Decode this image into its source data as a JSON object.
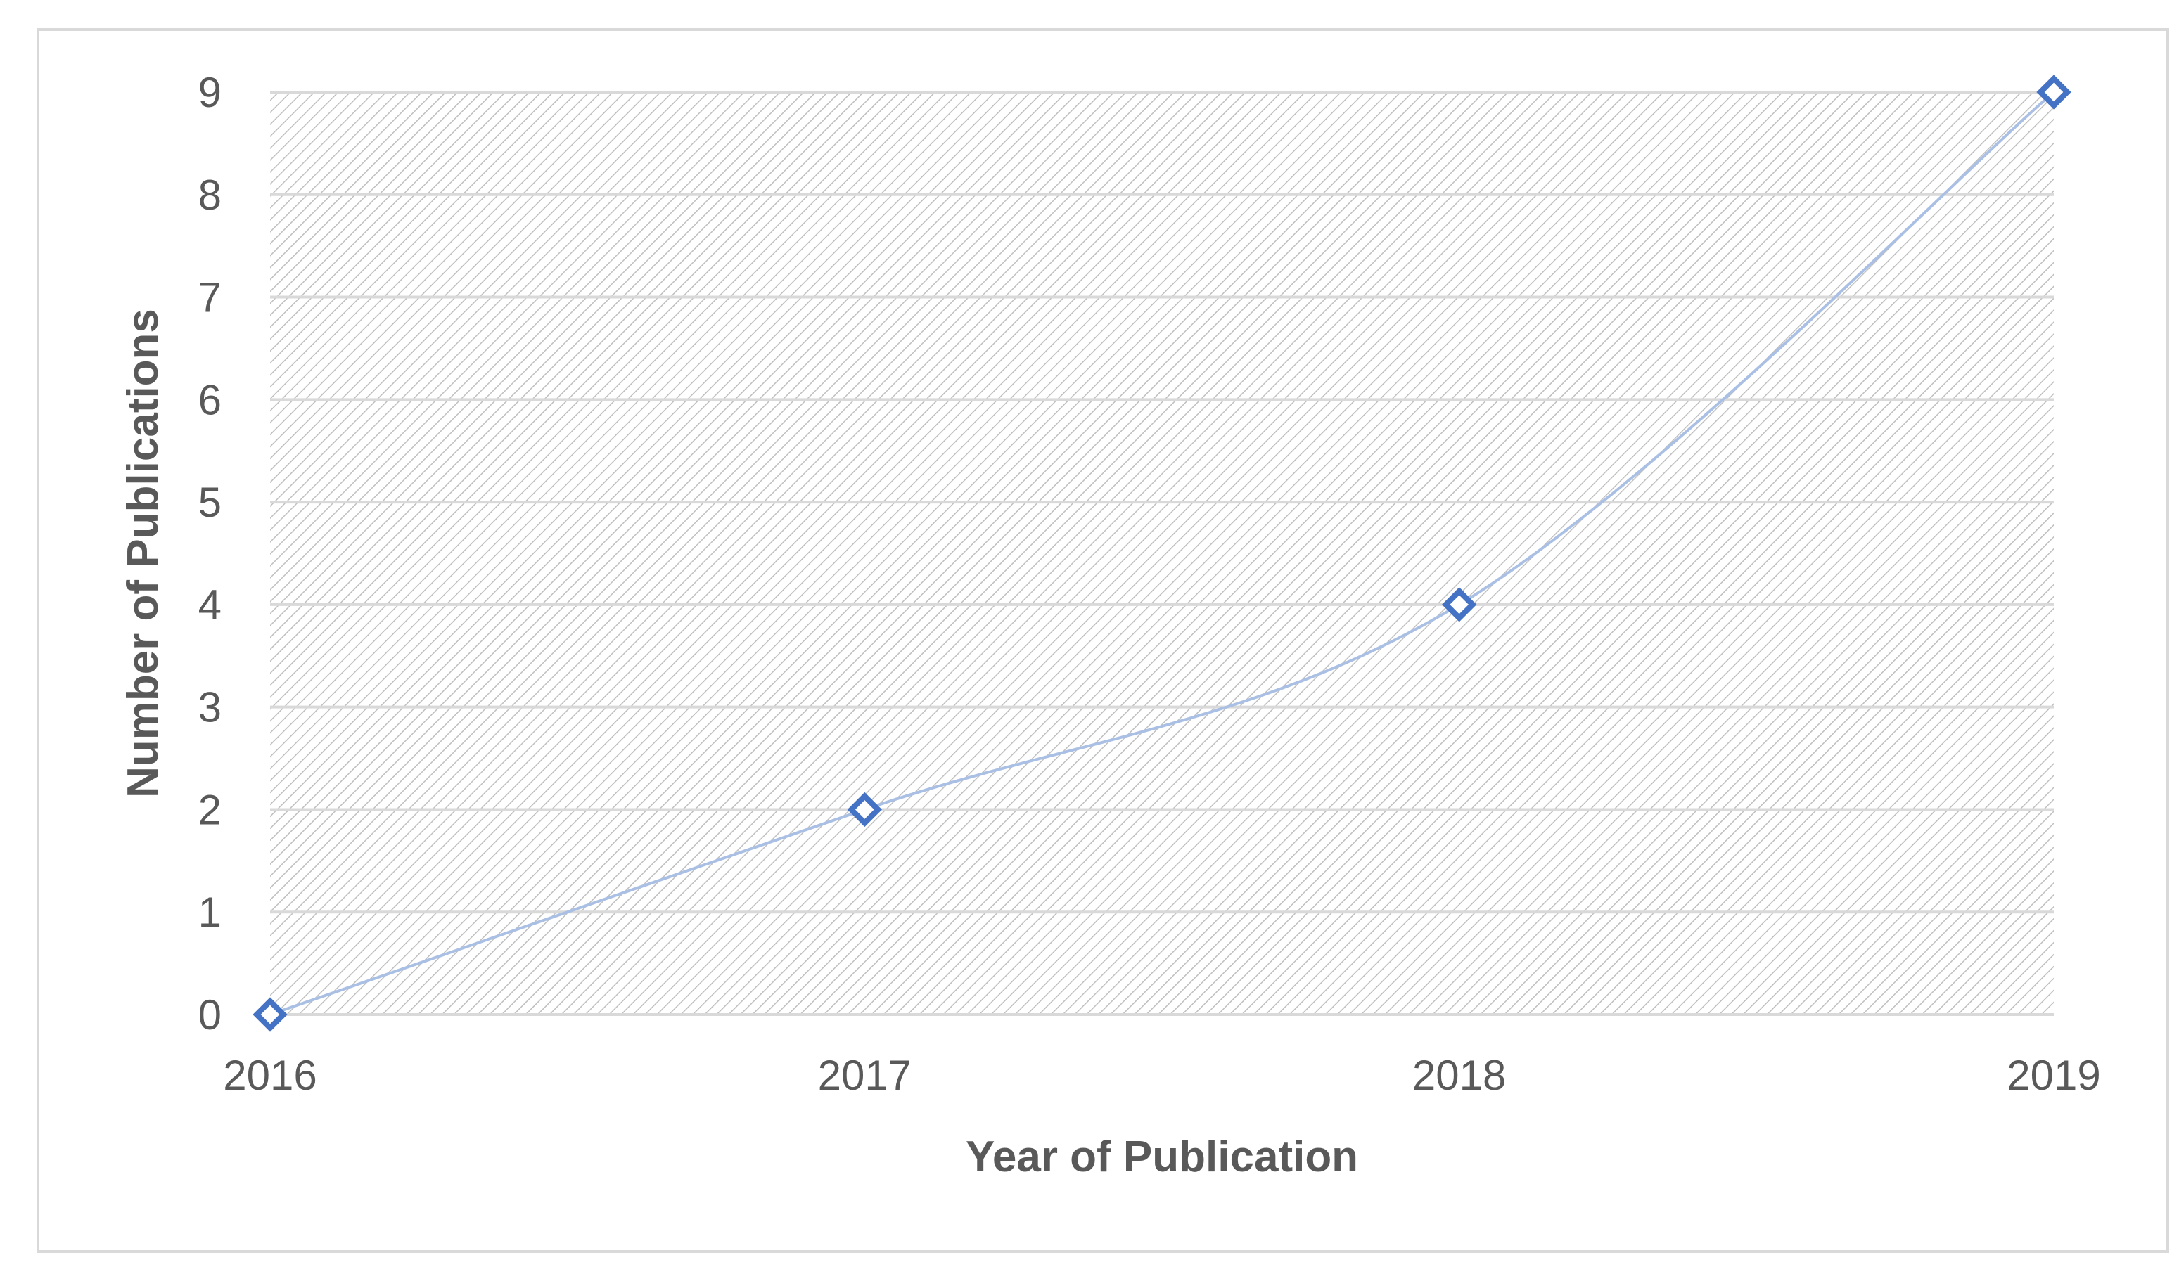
{
  "chart_data": {
    "type": "line",
    "title": "",
    "xlabel": "Year of Publication",
    "ylabel": "Number of Publications",
    "categories": [
      "2016",
      "2017",
      "2018",
      "2019"
    ],
    "series": [
      {
        "values": [
          0,
          2,
          4,
          9
        ]
      }
    ],
    "ylim": [
      0,
      9
    ],
    "yticks": [
      0,
      1,
      2,
      3,
      4,
      5,
      6,
      7,
      8,
      9
    ],
    "smooth": true,
    "marker": "hollow-diamond",
    "grid": true,
    "plot_background": "diagonal-hatch",
    "legend": "none",
    "colors": {
      "line": "#a9bfe4",
      "marker": "#4472c4",
      "grid": "#d9d9d9",
      "hatch": "#bfbfbf",
      "text": "#595959",
      "frame": "#d9d9d9"
    }
  }
}
